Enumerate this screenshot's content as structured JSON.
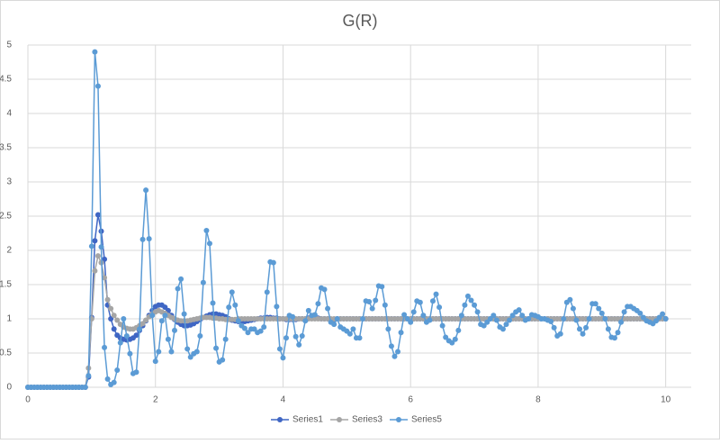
{
  "chart_data": {
    "type": "scatter-line",
    "title": "G(R)",
    "x": [
      0,
      0.05,
      0.1,
      0.15,
      0.2,
      0.25,
      0.3,
      0.35,
      0.4,
      0.45,
      0.5,
      0.55,
      0.6,
      0.65,
      0.7,
      0.75,
      0.8,
      0.85,
      0.9,
      0.95,
      1,
      1.05,
      1.1,
      1.15,
      1.2,
      1.25,
      1.3,
      1.35,
      1.4,
      1.45,
      1.5,
      1.55,
      1.6,
      1.65,
      1.7,
      1.75,
      1.8,
      1.85,
      1.9,
      1.95,
      2,
      2.05,
      2.1,
      2.15,
      2.2,
      2.25,
      2.3,
      2.35,
      2.4,
      2.45,
      2.5,
      2.55,
      2.6,
      2.65,
      2.7,
      2.75,
      2.8,
      2.85,
      2.9,
      2.95,
      3,
      3.05,
      3.1,
      3.15,
      3.2,
      3.25,
      3.3,
      3.35,
      3.4,
      3.45,
      3.5,
      3.55,
      3.6,
      3.65,
      3.7,
      3.75,
      3.8,
      3.85,
      3.9,
      3.95,
      4,
      4.05,
      4.1,
      4.15,
      4.2,
      4.25,
      4.3,
      4.35,
      4.4,
      4.45,
      4.5,
      4.55,
      4.6,
      4.65,
      4.7,
      4.75,
      4.8,
      4.85,
      4.9,
      4.95,
      5,
      5.05,
      5.1,
      5.15,
      5.2,
      5.25,
      5.3,
      5.35,
      5.4,
      5.45,
      5.5,
      5.55,
      5.6,
      5.65,
      5.7,
      5.75,
      5.8,
      5.85,
      5.9,
      5.95,
      6,
      6.05,
      6.1,
      6.15,
      6.2,
      6.25,
      6.3,
      6.35,
      6.4,
      6.45,
      6.5,
      6.55,
      6.6,
      6.65,
      6.7,
      6.75,
      6.8,
      6.85,
      6.9,
      6.95,
      7,
      7.05,
      7.1,
      7.15,
      7.2,
      7.25,
      7.3,
      7.35,
      7.4,
      7.45,
      7.5,
      7.55,
      7.6,
      7.65,
      7.7,
      7.75,
      7.8,
      7.85,
      7.9,
      7.95,
      8,
      8.05,
      8.1,
      8.15,
      8.2,
      8.25,
      8.3,
      8.35,
      8.4,
      8.45,
      8.5,
      8.55,
      8.6,
      8.65,
      8.7,
      8.75,
      8.8,
      8.85,
      8.9,
      8.95,
      9,
      9.05,
      9.1,
      9.15,
      9.2,
      9.25,
      9.3,
      9.35,
      9.4,
      9.45,
      9.5,
      9.55,
      9.6,
      9.65,
      9.7,
      9.75,
      9.8,
      9.85,
      9.9,
      9.95,
      10
    ],
    "series": [
      {
        "name": "Series1",
        "color": "#3f66c4",
        "values": [
          0,
          0,
          0,
          0,
          0,
          0,
          0,
          0,
          0,
          0,
          0,
          0,
          0,
          0,
          0,
          0,
          0,
          0,
          0,
          0.15,
          1.02,
          2.14,
          2.52,
          2.28,
          1.87,
          1.2,
          1.0,
          0.85,
          0.76,
          0.72,
          0.7,
          0.69,
          0.7,
          0.72,
          0.76,
          0.83,
          0.9,
          0.97,
          1.05,
          1.12,
          1.18,
          1.2,
          1.2,
          1.17,
          1.12,
          1.05,
          0.99,
          0.95,
          0.92,
          0.9,
          0.9,
          0.91,
          0.93,
          0.96,
          0.99,
          1.02,
          1.04,
          1.06,
          1.07,
          1.07,
          1.06,
          1.05,
          1.03,
          1.0,
          0.98,
          0.97,
          0.96,
          0.96,
          0.96,
          0.97,
          0.98,
          0.99,
          1.0,
          1.01,
          1.01,
          1.02,
          1.02,
          1.01,
          1.01,
          1.0,
          1.0,
          0.99,
          0.99,
          0.99,
          0.99,
          1.0,
          1.0,
          1.0,
          1.01,
          1.01,
          1.01,
          1.01,
          1.0,
          1.0,
          1.0,
          0.99,
          0.99,
          1.0,
          1.0,
          1.0,
          1,
          1,
          1,
          1,
          1,
          1,
          1,
          1,
          1,
          1,
          1,
          1,
          1,
          1,
          1,
          1,
          1,
          1,
          1,
          1,
          1,
          1,
          1,
          1,
          1,
          1,
          1,
          1,
          1,
          1,
          1,
          1,
          1,
          1,
          1,
          1,
          1,
          1,
          1,
          1,
          1,
          1,
          1,
          1,
          1,
          1,
          1,
          1,
          1,
          1,
          1,
          1,
          1,
          1,
          1,
          1,
          1,
          1,
          1,
          1,
          1,
          1,
          1,
          1,
          1,
          1,
          1,
          1,
          1,
          1,
          1,
          1,
          1,
          1,
          1,
          1,
          1,
          1,
          1,
          1,
          1,
          1,
          1,
          1,
          1,
          1,
          1,
          1,
          1,
          1,
          1,
          1,
          1,
          1,
          1,
          1,
          1,
          1,
          1,
          1,
          1
        ]
      },
      {
        "name": "Series3",
        "color": "#a5a5a5",
        "values": [
          0,
          0,
          0,
          0,
          0,
          0,
          0,
          0,
          0,
          0,
          0,
          0,
          0,
          0,
          0,
          0,
          0,
          0,
          0,
          0.28,
          1.0,
          1.7,
          1.92,
          1.82,
          1.6,
          1.28,
          1.15,
          1.05,
          0.98,
          0.92,
          0.88,
          0.86,
          0.85,
          0.85,
          0.87,
          0.9,
          0.93,
          0.98,
          1.03,
          1.07,
          1.1,
          1.12,
          1.1,
          1.08,
          1.05,
          1.02,
          1.0,
          0.98,
          0.97,
          0.97,
          0.97,
          0.98,
          0.99,
          1.0,
          1.01,
          1.02,
          1.02,
          1.02,
          1.01,
          1.01,
          1.0,
          1.0,
          0.99,
          0.99,
          0.99,
          0.99,
          1,
          1,
          1,
          1,
          1,
          1,
          1,
          1,
          1,
          1,
          1,
          1,
          1,
          1,
          1,
          1,
          1,
          1,
          1,
          1,
          1,
          1,
          1,
          1,
          1,
          1,
          1,
          1,
          1,
          1,
          1,
          1,
          1,
          1,
          1,
          1,
          1,
          1,
          1,
          1,
          1,
          1,
          1,
          1,
          1,
          1,
          1,
          1,
          1,
          1,
          1,
          1,
          1,
          1,
          1,
          1,
          1,
          1,
          1,
          1,
          1,
          1,
          1,
          1,
          1,
          1,
          1,
          1,
          1,
          1,
          1,
          1,
          1,
          1,
          1,
          1,
          1,
          1,
          1,
          1,
          1,
          1,
          1,
          1,
          1,
          1,
          1,
          1,
          1,
          1,
          1,
          1,
          1,
          1,
          1,
          1,
          1,
          1,
          1,
          1,
          1,
          1,
          1,
          1,
          1,
          1,
          1,
          1,
          1,
          1,
          1,
          1,
          1,
          1,
          1,
          1,
          1,
          1,
          1,
          1,
          1,
          1,
          1,
          1,
          1,
          1,
          1,
          1,
          1,
          1,
          1,
          1,
          1,
          1,
          1
        ]
      },
      {
        "name": "Series5",
        "color": "#5b9bd5",
        "values": [
          0,
          0,
          0,
          0,
          0,
          0,
          0,
          0,
          0,
          0,
          0,
          0,
          0,
          0,
          0,
          0,
          0,
          0,
          0,
          0.17,
          2.06,
          4.9,
          4.4,
          2.05,
          0.58,
          0.12,
          0.04,
          0.07,
          0.25,
          0.65,
          1.0,
          0.75,
          0.49,
          0.2,
          0.22,
          0.85,
          2.16,
          2.88,
          2.17,
          1.05,
          0.38,
          0.52,
          0.97,
          1.05,
          0.7,
          0.52,
          0.83,
          1.44,
          1.58,
          1.07,
          0.56,
          0.44,
          0.49,
          0.52,
          0.75,
          1.53,
          2.29,
          2.1,
          1.23,
          0.57,
          0.37,
          0.4,
          0.7,
          1.17,
          1.39,
          1.2,
          0.97,
          0.9,
          0.86,
          0.8,
          0.85,
          0.85,
          0.8,
          0.82,
          0.88,
          1.39,
          1.83,
          1.82,
          1.18,
          0.56,
          0.43,
          0.72,
          1.05,
          1.03,
          0.74,
          0.62,
          0.75,
          0.97,
          1.12,
          1.05,
          1.06,
          1.22,
          1.45,
          1.43,
          1.15,
          0.95,
          0.92,
          1.0,
          0.88,
          0.85,
          0.82,
          0.78,
          0.85,
          0.72,
          0.72,
          1.0,
          1.26,
          1.25,
          1.15,
          1.27,
          1.48,
          1.47,
          1.2,
          0.85,
          0.6,
          0.45,
          0.52,
          0.8,
          1.06,
          1.0,
          0.95,
          1.1,
          1.26,
          1.24,
          1.05,
          0.95,
          0.98,
          1.26,
          1.36,
          1.17,
          0.9,
          0.73,
          0.68,
          0.65,
          0.7,
          0.83,
          1.05,
          1.2,
          1.33,
          1.27,
          1.2,
          1.1,
          0.92,
          0.9,
          0.95,
          1.0,
          1.05,
          0.98,
          0.88,
          0.85,
          0.92,
          0.98,
          1.05,
          1.1,
          1.13,
          1.05,
          0.98,
          1.0,
          1.06,
          1.05,
          1.03,
          1.0,
          1.0,
          0.98,
          0.96,
          0.87,
          0.75,
          0.78,
          1.0,
          1.24,
          1.28,
          1.15,
          0.98,
          0.85,
          0.78,
          0.87,
          1.0,
          1.22,
          1.22,
          1.15,
          1.08,
          1.0,
          0.85,
          0.73,
          0.72,
          0.8,
          0.95,
          1.1,
          1.18,
          1.18,
          1.15,
          1.12,
          1.08,
          1.02,
          0.97,
          0.95,
          0.93,
          0.97,
          1.02,
          1.07,
          1.0
        ]
      }
    ],
    "xlim": [
      0,
      10.4
    ],
    "xticks": [
      0,
      2,
      4,
      6,
      8,
      10
    ],
    "ylim": [
      0,
      5
    ],
    "yticks": [
      0,
      0.5,
      1,
      1.5,
      2,
      2.5,
      3,
      3.5,
      4,
      4.5,
      5
    ],
    "grid": true,
    "legend": "bottom"
  }
}
